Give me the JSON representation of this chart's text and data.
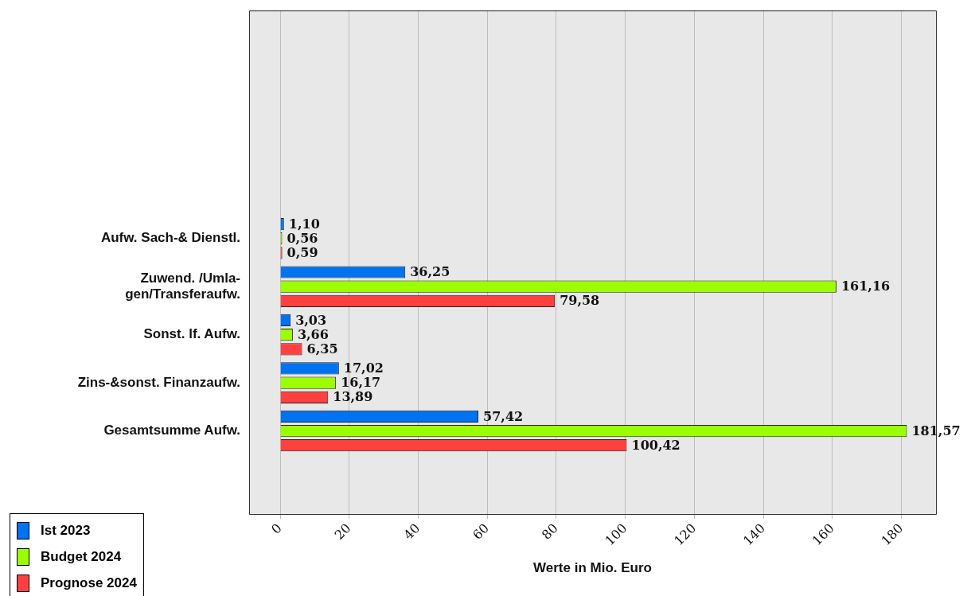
{
  "chart_data": {
    "type": "bar",
    "orientation": "horizontal",
    "xlabel": "Werte in Mio. Euro",
    "categories": [
      "Aufw. Sach-& Dienstl.",
      "Zuwend. /Umla-\ngen/Transferaufw.",
      "Sonst. lf. Aufw.",
      "Zins-&sonst. Finanzaufw.",
      "Gesamtsumme Aufw."
    ],
    "series": [
      {
        "name": "Ist 2023",
        "color": "#0073f0",
        "values": [
          1.1,
          36.25,
          3.03,
          17.02,
          57.42
        ],
        "value_labels": [
          "1,10",
          "36,25",
          "3,03",
          "17,02",
          "57,42"
        ]
      },
      {
        "name": "Budget 2024",
        "color": "#9cff00",
        "values": [
          0.56,
          161.16,
          3.66,
          16.17,
          181.57
        ],
        "value_labels": [
          "0,56",
          "161,16",
          "3,66",
          "16,17",
          "181,57"
        ]
      },
      {
        "name": "Prognose 2024",
        "color": "#ff4040",
        "values": [
          0.59,
          79.58,
          6.35,
          13.89,
          100.42
        ],
        "value_labels": [
          "0,59",
          "79,58",
          "6,35",
          "13,89",
          "100,42"
        ]
      }
    ],
    "xlim": [
      -9,
      190
    ],
    "xticks": [
      0,
      20,
      40,
      60,
      80,
      100,
      120,
      140,
      160,
      180
    ],
    "grid": "x",
    "legend": "bottom left"
  }
}
